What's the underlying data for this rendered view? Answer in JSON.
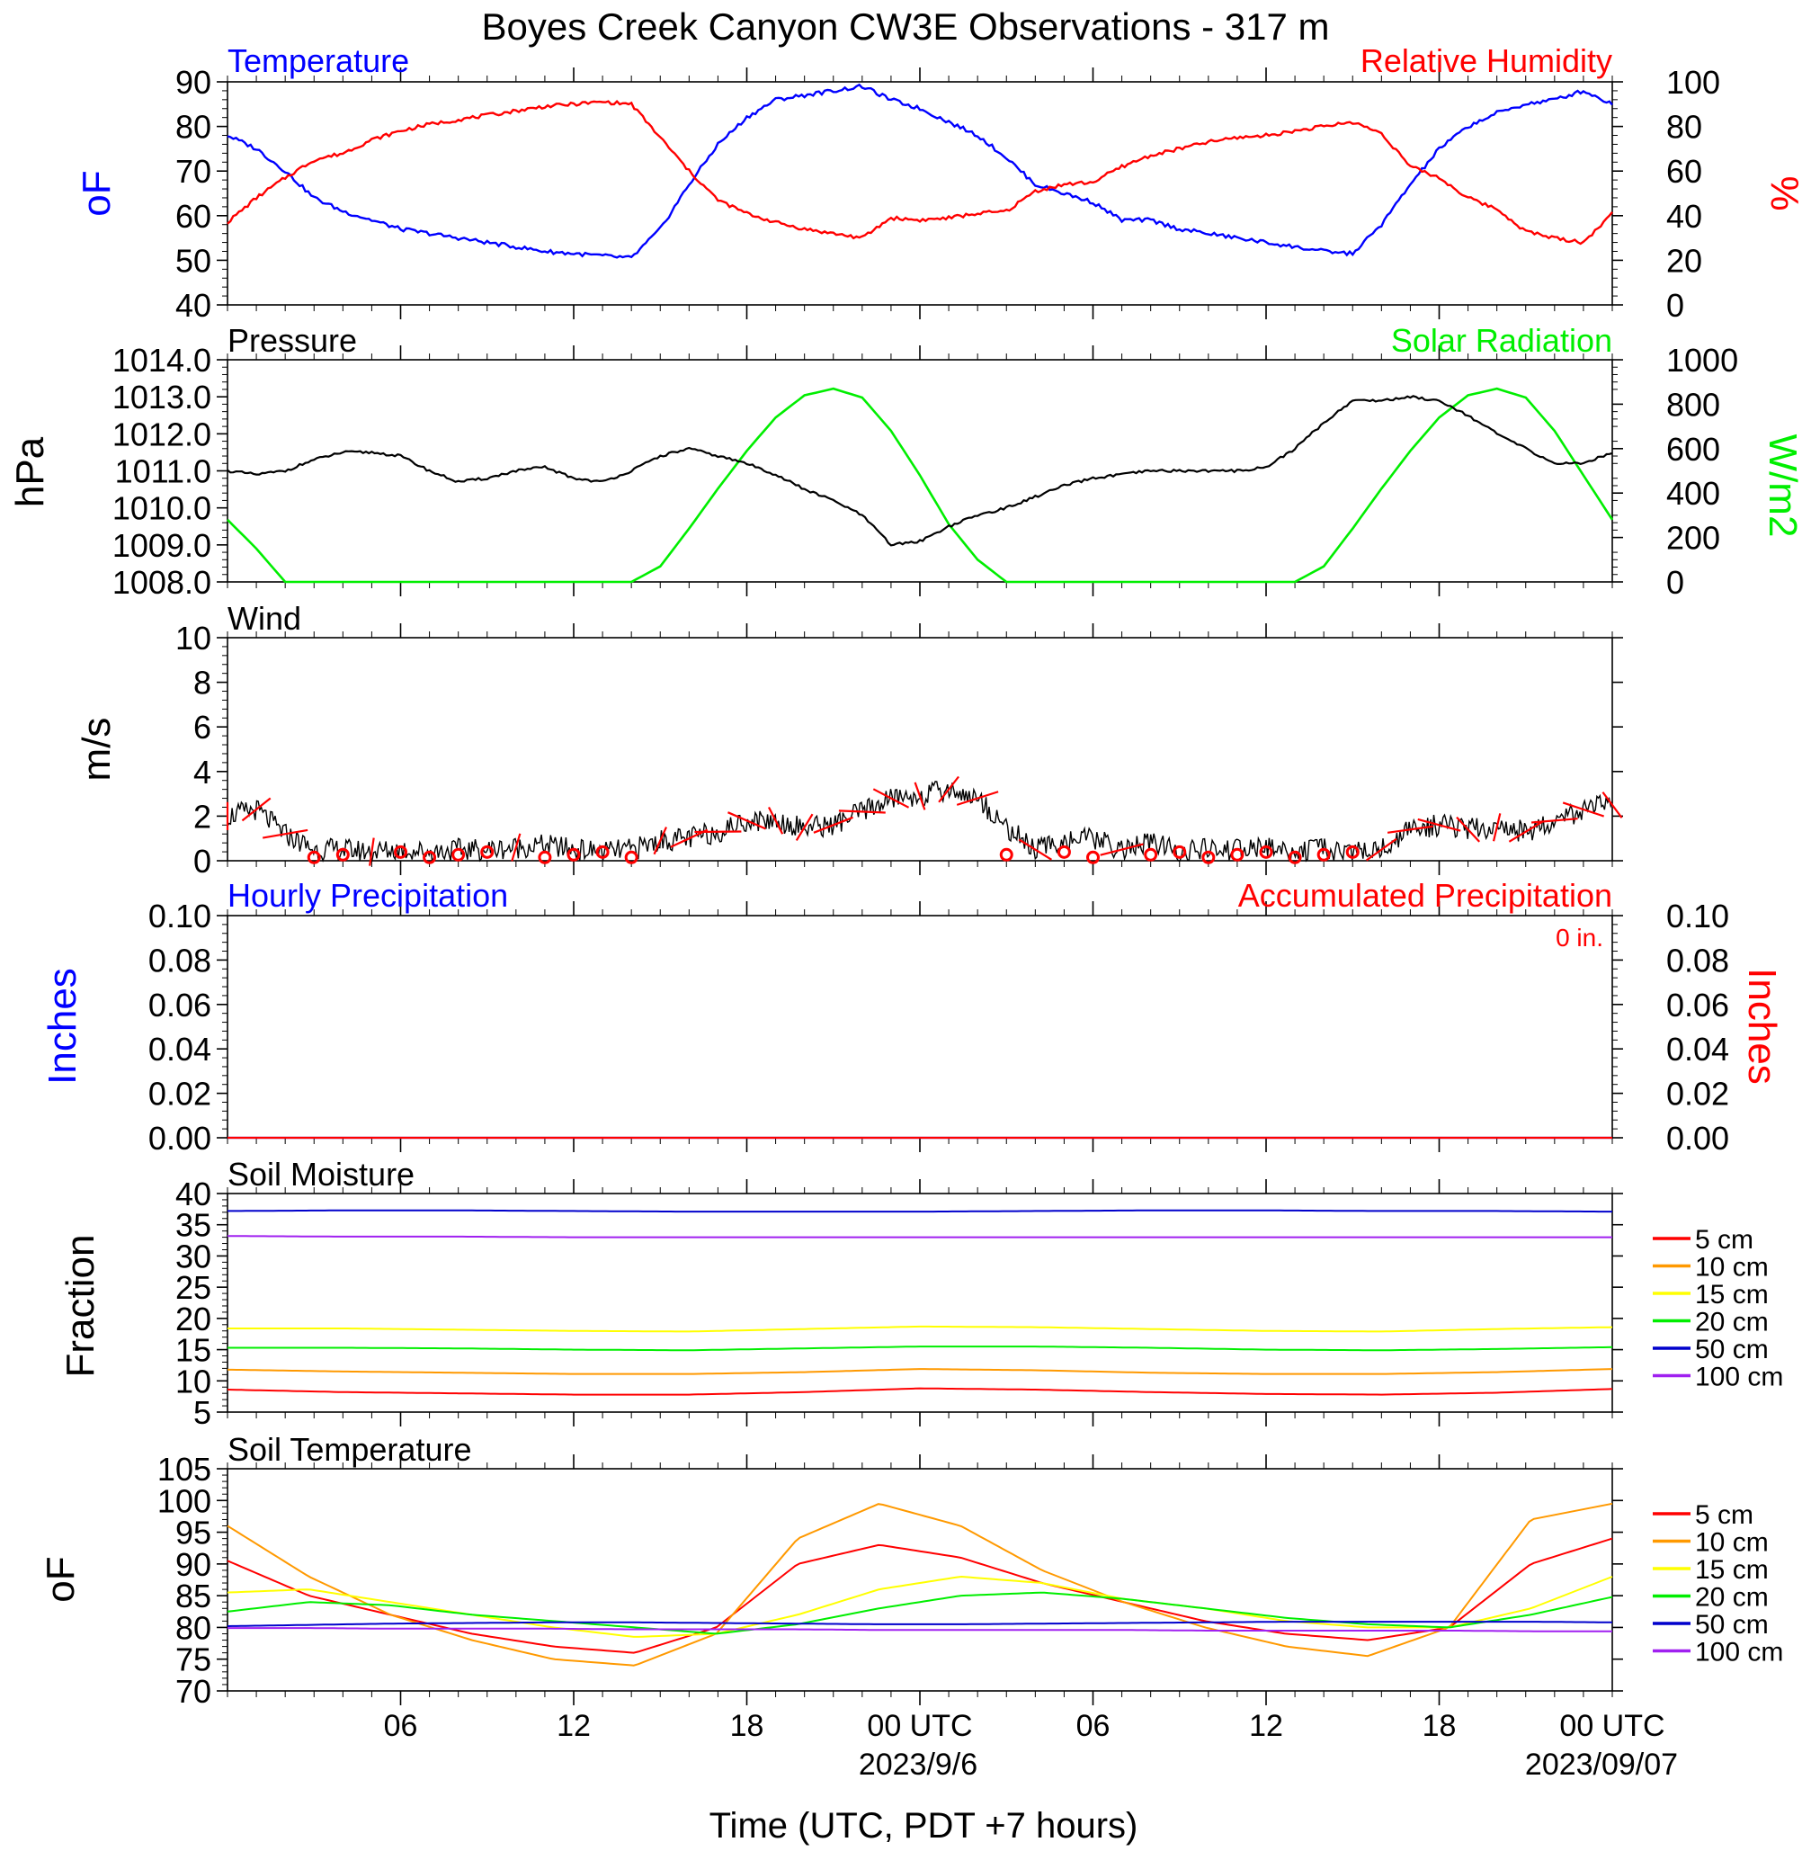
{
  "title": "Boyes Creek Canyon CW3E Observations - 317 m",
  "x_axis": {
    "label": "Time (UTC, PDT +7 hours)",
    "tick_labels": [
      "06",
      "12",
      "18",
      "00 UTC",
      "06",
      "12",
      "18",
      "00 UTC"
    ],
    "date_labels": [
      "2023/9/6",
      "2023/09/07"
    ]
  },
  "legend_labels": [
    "5 cm",
    "10 cm",
    "15 cm",
    "20 cm",
    "50 cm",
    "100 cm"
  ],
  "colors": {
    "blue": "#0000ff",
    "red": "#ff0000",
    "green": "#00ee00",
    "black": "#000000",
    "orange": "#ff9900",
    "yellow": "#ffff00",
    "purple": "#a020f0",
    "navy": "#0000cc"
  },
  "chart_data": [
    {
      "type": "line",
      "panel": "temperature-humidity",
      "title_left": "Temperature",
      "title_right": "Relative Humidity",
      "ylabel_left": "oF",
      "ylabel_right": "%",
      "ylim_left": [
        40,
        90
      ],
      "ylim_right": [
        0,
        100
      ],
      "ticks_left": [
        "40",
        "50",
        "60",
        "70",
        "80",
        "90"
      ],
      "ticks_right": [
        "0",
        "20",
        "40",
        "60",
        "80",
        "100"
      ],
      "x_hours": [
        0,
        1,
        2,
        3,
        4,
        5,
        6,
        7,
        8,
        9,
        10,
        11,
        12,
        13,
        14,
        15,
        16,
        17,
        18,
        19,
        20,
        21,
        22,
        23,
        24,
        25,
        26,
        27,
        28,
        29,
        30,
        31,
        32,
        33,
        34,
        35,
        36,
        37,
        38,
        39,
        40,
        41,
        42,
        43,
        44,
        45,
        46,
        47,
        48
      ],
      "series": [
        {
          "name": "Temperature",
          "axis": "left",
          "color": "#0000ff",
          "values": [
            78,
            75,
            70,
            64,
            61,
            59,
            57,
            56,
            55,
            54,
            53,
            52,
            51.5,
            51,
            50.5,
            57,
            67,
            76,
            82,
            86,
            87,
            88,
            89,
            86,
            84,
            81,
            78,
            73,
            67,
            65,
            63,
            59,
            59,
            57,
            56,
            55,
            54,
            53,
            52,
            51.5,
            58,
            67,
            75,
            80,
            83,
            85,
            86,
            88,
            85
          ]
        },
        {
          "name": "Relative Humidity",
          "axis": "right",
          "color": "#ff0000",
          "values": [
            37,
            48,
            57,
            65,
            68,
            74,
            78,
            81,
            83,
            85,
            87,
            89,
            90,
            91,
            90,
            75,
            60,
            47,
            41,
            37,
            34,
            32,
            30,
            39,
            38,
            39,
            41,
            42,
            51,
            54,
            55,
            62,
            67,
            70,
            73,
            75,
            76,
            78,
            80,
            82,
            77,
            62,
            57,
            48,
            43,
            33,
            30,
            28,
            41
          ]
        }
      ]
    },
    {
      "type": "line",
      "panel": "pressure-solar",
      "title_left": "Pressure",
      "title_right": "Solar Radiation",
      "ylabel_left": "hPa",
      "ylabel_right": "W/m2",
      "ylim_left": [
        1008,
        1014
      ],
      "ylim_right": [
        0,
        1000
      ],
      "ticks_left": [
        "1008.0",
        "1009.0",
        "1010.0",
        "1011.0",
        "1012.0",
        "1013.0",
        "1014.0"
      ],
      "ticks_right": [
        "0",
        "200",
        "400",
        "600",
        "800",
        "1000"
      ],
      "series": [
        {
          "name": "Pressure",
          "axis": "left",
          "color": "#000000",
          "values": [
            1011.0,
            1010.9,
            1011.0,
            1011.3,
            1011.5,
            1011.5,
            1011.4,
            1011.0,
            1010.7,
            1010.8,
            1011.0,
            1011.1,
            1010.8,
            1010.7,
            1011.0,
            1011.4,
            1011.6,
            1011.4,
            1011.2,
            1010.9,
            1010.5,
            1010.2,
            1009.8,
            1009.0,
            1009.1,
            1009.5,
            1009.8,
            1010.0,
            1010.3,
            1010.6,
            1010.8,
            1010.9,
            1011.0,
            1011.0,
            1011.0,
            1011.0,
            1011.1,
            1011.6,
            1012.3,
            1012.9,
            1012.9,
            1013.0,
            1012.9,
            1012.5,
            1012.0,
            1011.6,
            1011.2,
            1011.2,
            1011.5
          ]
        },
        {
          "name": "Solar Radiation",
          "axis": "right",
          "color": "#00ee00",
          "values": [
            280,
            150,
            0,
            0,
            0,
            0,
            0,
            0,
            0,
            0,
            0,
            0,
            0,
            0,
            0,
            70,
            240,
            420,
            590,
            740,
            840,
            870,
            830,
            680,
            480,
            260,
            100,
            0,
            0,
            0,
            0,
            0,
            0,
            0,
            0,
            0,
            0,
            0,
            70,
            240,
            420,
            590,
            740,
            840,
            870,
            830,
            680,
            480,
            280
          ]
        }
      ]
    },
    {
      "type": "line",
      "panel": "wind",
      "title_left": "Wind",
      "ylabel_left": "m/s",
      "ylim_left": [
        0,
        10
      ],
      "ticks_left": [
        "0",
        "2",
        "4",
        "6",
        "8",
        "10"
      ],
      "series": [
        {
          "name": "Wind",
          "axis": "left",
          "color": "#000000",
          "values": [
            2.0,
            2.3,
            1.2,
            0.5,
            0.5,
            0.4,
            0.5,
            0.4,
            0.5,
            0.5,
            0.6,
            0.7,
            0.5,
            0.4,
            0.5,
            0.9,
            1.0,
            1.3,
            1.8,
            1.8,
            1.5,
            1.6,
            2.2,
            2.8,
            2.9,
            3.2,
            2.8,
            1.5,
            0.5,
            0.9,
            1.0,
            0.5,
            0.8,
            0.4,
            0.5,
            0.5,
            0.6,
            0.4,
            0.5,
            0.4,
            0.5,
            1.4,
            1.6,
            1.4,
            1.5,
            1.3,
            1.8,
            2.3,
            2.5
          ]
        }
      ],
      "calm_markers_hours": [
        3,
        4,
        6,
        7,
        8,
        9,
        11,
        12,
        13,
        14,
        27,
        29,
        30,
        32,
        33,
        34,
        35,
        36,
        37,
        38,
        39
      ]
    },
    {
      "type": "line",
      "panel": "precipitation",
      "title_left": "Hourly Precipitation",
      "title_right": "Accumulated Precipitation",
      "annotation": "0 in.",
      "ylabel_left": "Inches",
      "ylabel_right": "Inches",
      "ylim_left": [
        0,
        0.1
      ],
      "ylim_right": [
        0,
        0.1
      ],
      "ticks_left": [
        "0.00",
        "0.02",
        "0.04",
        "0.06",
        "0.08",
        "0.10"
      ],
      "ticks_right": [
        "0.00",
        "0.02",
        "0.04",
        "0.06",
        "0.08",
        "0.10"
      ],
      "series": [
        {
          "name": "Hourly Precipitation",
          "axis": "left",
          "color": "#0000ff",
          "values": [
            0,
            0
          ]
        },
        {
          "name": "Accumulated Precipitation",
          "axis": "right",
          "color": "#ff0000",
          "values": [
            0,
            0
          ]
        }
      ]
    },
    {
      "type": "line",
      "panel": "soil-moisture",
      "title_left": "Soil Moisture",
      "ylabel_left": "Fraction",
      "ylim_left": [
        5,
        40
      ],
      "ticks_left": [
        "5",
        "10",
        "15",
        "20",
        "25",
        "30",
        "35",
        "40"
      ],
      "series": [
        {
          "name": "5 cm",
          "color": "#ff0000",
          "values": [
            8.6,
            8.2,
            8.0,
            7.8,
            7.8,
            8.2,
            8.8,
            8.6,
            8.2,
            7.9,
            7.8,
            8.1,
            8.7
          ]
        },
        {
          "name": "10 cm",
          "color": "#ff9900",
          "values": [
            11.8,
            11.5,
            11.3,
            11.1,
            11.1,
            11.4,
            11.9,
            11.7,
            11.3,
            11.1,
            11.1,
            11.4,
            11.9
          ]
        },
        {
          "name": "15 cm",
          "color": "#ffff00",
          "values": [
            18.4,
            18.4,
            18.2,
            18.0,
            17.9,
            18.3,
            18.7,
            18.6,
            18.3,
            18.0,
            17.9,
            18.3,
            18.6
          ]
        },
        {
          "name": "20 cm",
          "color": "#00ee00",
          "values": [
            15.3,
            15.3,
            15.2,
            15.0,
            14.9,
            15.2,
            15.5,
            15.5,
            15.3,
            15.0,
            14.9,
            15.1,
            15.4
          ]
        },
        {
          "name": "50 cm",
          "color": "#0000cc",
          "values": [
            37.2,
            37.3,
            37.3,
            37.2,
            37.1,
            37.1,
            37.1,
            37.2,
            37.3,
            37.3,
            37.2,
            37.2,
            37.1
          ]
        },
        {
          "name": "100 cm",
          "color": "#a020f0",
          "values": [
            33.2,
            33.1,
            33.1,
            33.0,
            33.0,
            33.0,
            33.0,
            33.0,
            33.0,
            33.0,
            33.0,
            33.0,
            33.0
          ]
        }
      ]
    },
    {
      "type": "line",
      "panel": "soil-temperature",
      "title_left": "Soil Temperature",
      "ylabel_left": "oF",
      "ylim_left": [
        70,
        105
      ],
      "ticks_left": [
        "70",
        "75",
        "80",
        "85",
        "90",
        "95",
        "100",
        "105"
      ],
      "series": [
        {
          "name": "5 cm",
          "color": "#ff0000",
          "values": [
            90.5,
            85,
            82,
            79,
            77,
            76,
            80,
            90,
            93,
            91,
            87,
            84,
            81,
            79,
            78,
            80,
            90,
            94
          ]
        },
        {
          "name": "10 cm",
          "color": "#ff9900",
          "values": [
            96,
            88,
            82,
            78,
            75,
            74,
            79,
            94,
            99.5,
            96,
            89,
            84,
            80,
            77,
            75.5,
            80,
            97,
            99.5
          ]
        },
        {
          "name": "15 cm",
          "color": "#ffff00",
          "values": [
            85.5,
            86,
            84,
            82,
            80,
            78.5,
            79,
            82,
            86,
            88,
            87,
            84.5,
            83,
            81,
            80,
            80,
            83,
            88
          ]
        },
        {
          "name": "20 cm",
          "color": "#00ee00",
          "values": [
            82.5,
            84,
            83.5,
            82,
            81,
            80,
            79,
            80.5,
            83,
            85,
            85.5,
            84.5,
            83,
            81.5,
            80.5,
            80,
            82,
            84.8
          ]
        },
        {
          "name": "50 cm",
          "color": "#0000cc",
          "values": [
            80.2,
            80.4,
            80.6,
            80.7,
            80.8,
            80.8,
            80.7,
            80.6,
            80.5,
            80.5,
            80.6,
            80.7,
            80.8,
            80.9,
            80.9,
            80.9,
            80.9,
            80.8
          ]
        },
        {
          "name": "100 cm",
          "color": "#a020f0",
          "values": [
            79.9,
            79.9,
            79.8,
            79.8,
            79.8,
            79.7,
            79.7,
            79.7,
            79.6,
            79.6,
            79.6,
            79.6,
            79.5,
            79.5,
            79.5,
            79.5,
            79.4,
            79.4
          ]
        }
      ]
    }
  ]
}
